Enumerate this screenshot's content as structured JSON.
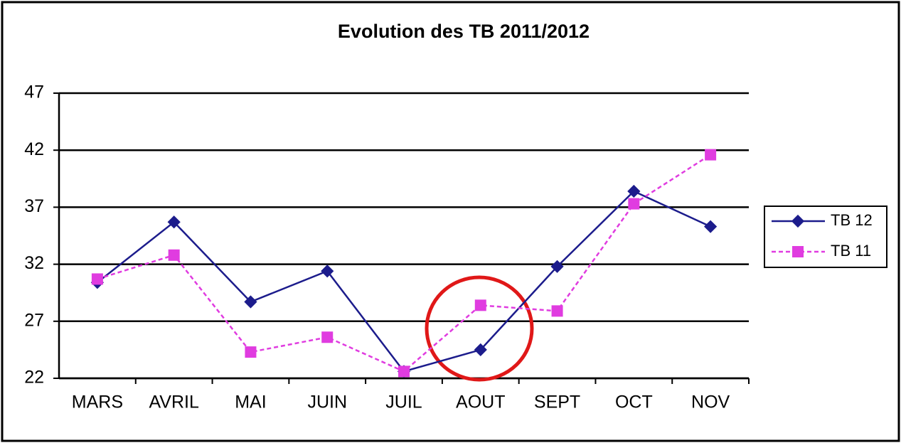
{
  "chart_data": {
    "type": "line",
    "title": "Evolution des TB 2011/2012",
    "categories": [
      "MARS",
      "AVRIL",
      "MAI",
      "JUIN",
      "JUIL",
      "AOUT",
      "SEPT",
      "OCT",
      "NOV"
    ],
    "series": [
      {
        "name": "TB 12",
        "color": "#1c1c8c",
        "marker": "diamond",
        "line_style": "solid",
        "values": [
          30.4,
          35.7,
          28.7,
          31.4,
          22.6,
          24.5,
          31.8,
          38.4,
          35.3
        ]
      },
      {
        "name": "TB 11",
        "color": "#e03ce0",
        "marker": "square",
        "line_style": "dashed",
        "values": [
          30.7,
          32.8,
          24.3,
          25.6,
          22.6,
          28.4,
          27.9,
          37.3,
          41.6
        ]
      }
    ],
    "ylim": [
      22,
      47
    ],
    "yticks": [
      22,
      27,
      32,
      37,
      42,
      47
    ],
    "grid": true,
    "legend": "right"
  }
}
